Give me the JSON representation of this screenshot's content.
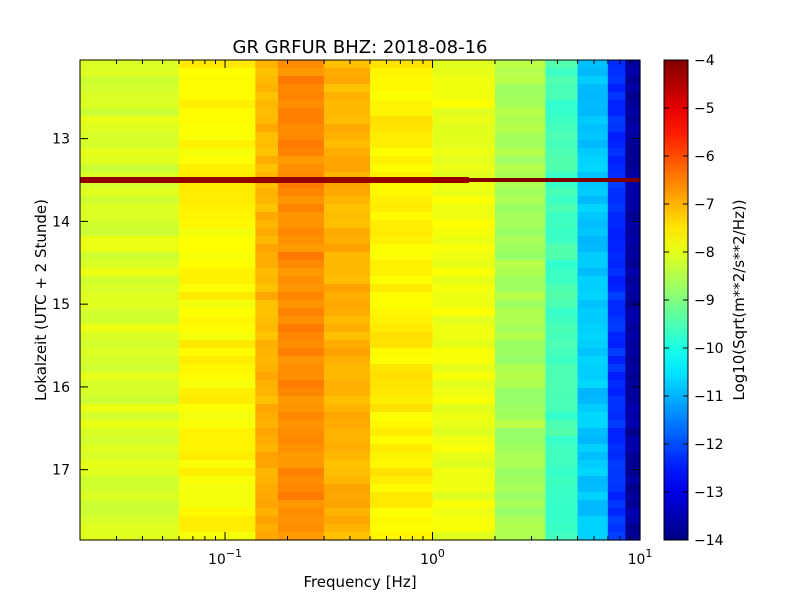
{
  "chart_data": {
    "type": "heatmap",
    "title": "GR GRFUR BHZ: 2018-08-16",
    "xlabel": "Frequency [Hz]",
    "ylabel": "Lokalzeit (UTC + 2 Stunde)",
    "x_scale": "log",
    "xlim": [
      0.02,
      10
    ],
    "ylim": [
      17.85,
      12.05
    ],
    "y_inverted": true,
    "x_ticks": [
      {
        "value": 0.1,
        "base": "10",
        "exp": "−1"
      },
      {
        "value": 1,
        "base": "10",
        "exp": "0"
      },
      {
        "value": 10,
        "base": "10",
        "exp": "1"
      }
    ],
    "y_ticks": [
      {
        "value": 13,
        "label": "13"
      },
      {
        "value": 14,
        "label": "14"
      },
      {
        "value": 15,
        "label": "15"
      },
      {
        "value": 16,
        "label": "16"
      },
      {
        "value": 17,
        "label": "17"
      }
    ],
    "colorbar": {
      "label": "Log10(Sqrt(m**2/s**2/Hz))",
      "range": [
        -14,
        -4
      ],
      "colormap": "jet",
      "ticks": [
        {
          "value": -4,
          "label": "−4"
        },
        {
          "value": -5,
          "label": "−5"
        },
        {
          "value": -6,
          "label": "−6"
        },
        {
          "value": -7,
          "label": "−7"
        },
        {
          "value": -8,
          "label": "−8"
        },
        {
          "value": -9,
          "label": "−9"
        },
        {
          "value": -10,
          "label": "−10"
        },
        {
          "value": -11,
          "label": "−11"
        },
        {
          "value": -12,
          "label": "−12"
        },
        {
          "value": -13,
          "label": "−13"
        },
        {
          "value": -14,
          "label": "−14"
        }
      ]
    },
    "frequency_bands": [
      {
        "f_start": 0.02,
        "f_end": 0.06,
        "value": -8.1
      },
      {
        "f_start": 0.06,
        "f_end": 0.14,
        "value": -7.7
      },
      {
        "f_start": 0.14,
        "f_end": 0.18,
        "value": -7.0
      },
      {
        "f_start": 0.18,
        "f_end": 0.3,
        "value": -6.6
      },
      {
        "f_start": 0.3,
        "f_end": 0.5,
        "value": -7.0
      },
      {
        "f_start": 0.5,
        "f_end": 1.0,
        "value": -7.6
      },
      {
        "f_start": 1.0,
        "f_end": 2.0,
        "value": -7.9
      },
      {
        "f_start": 2.0,
        "f_end": 3.5,
        "value": -8.6
      },
      {
        "f_start": 3.5,
        "f_end": 5.0,
        "value": -9.6
      },
      {
        "f_start": 5.0,
        "f_end": 7.0,
        "value": -10.8
      },
      {
        "f_start": 7.0,
        "f_end": 8.5,
        "value": -12.3
      },
      {
        "f_start": 8.5,
        "f_end": 10.0,
        "value": -13.7
      }
    ],
    "events": [
      {
        "time": 13.5,
        "value": -4.2,
        "f_end": 1.5
      }
    ]
  }
}
